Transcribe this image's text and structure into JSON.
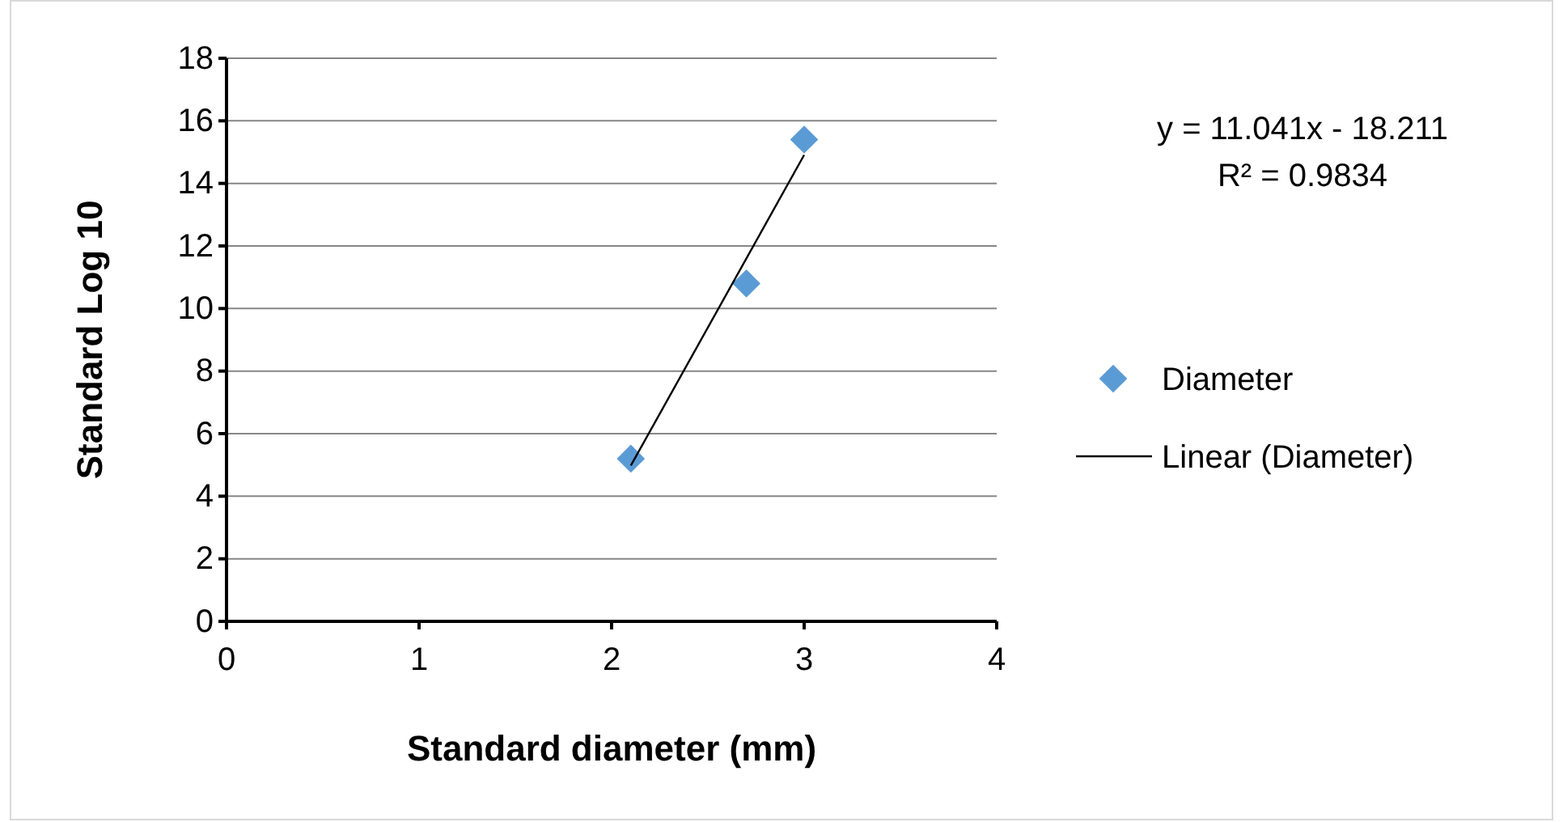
{
  "chart_data": {
    "type": "scatter",
    "xlabel": "Standard diameter (mm)",
    "ylabel": "Standard Log 10",
    "xlim": [
      0,
      4
    ],
    "xticks": [
      0,
      1,
      2,
      3,
      4
    ],
    "ylim": [
      0,
      18
    ],
    "yticks": [
      0,
      2,
      4,
      6,
      8,
      10,
      12,
      14,
      16,
      18
    ],
    "grid": "y",
    "legend": "right",
    "annotations": [
      "y = 11.041x - 18.211",
      "R² = 0.9834"
    ],
    "series": [
      {
        "name": "Diameter",
        "marker": "diamond",
        "color": "#5b9bd5",
        "x": [
          2.1,
          2.7,
          3
        ],
        "values": [
          5.2,
          10.8,
          15.4
        ]
      },
      {
        "name": "Linear (Diameter)",
        "type": "line",
        "marker": "none",
        "line_style": "solid",
        "color": "#000000",
        "x": [
          2.1,
          3
        ],
        "values": [
          4.98,
          14.91
        ]
      }
    ]
  }
}
